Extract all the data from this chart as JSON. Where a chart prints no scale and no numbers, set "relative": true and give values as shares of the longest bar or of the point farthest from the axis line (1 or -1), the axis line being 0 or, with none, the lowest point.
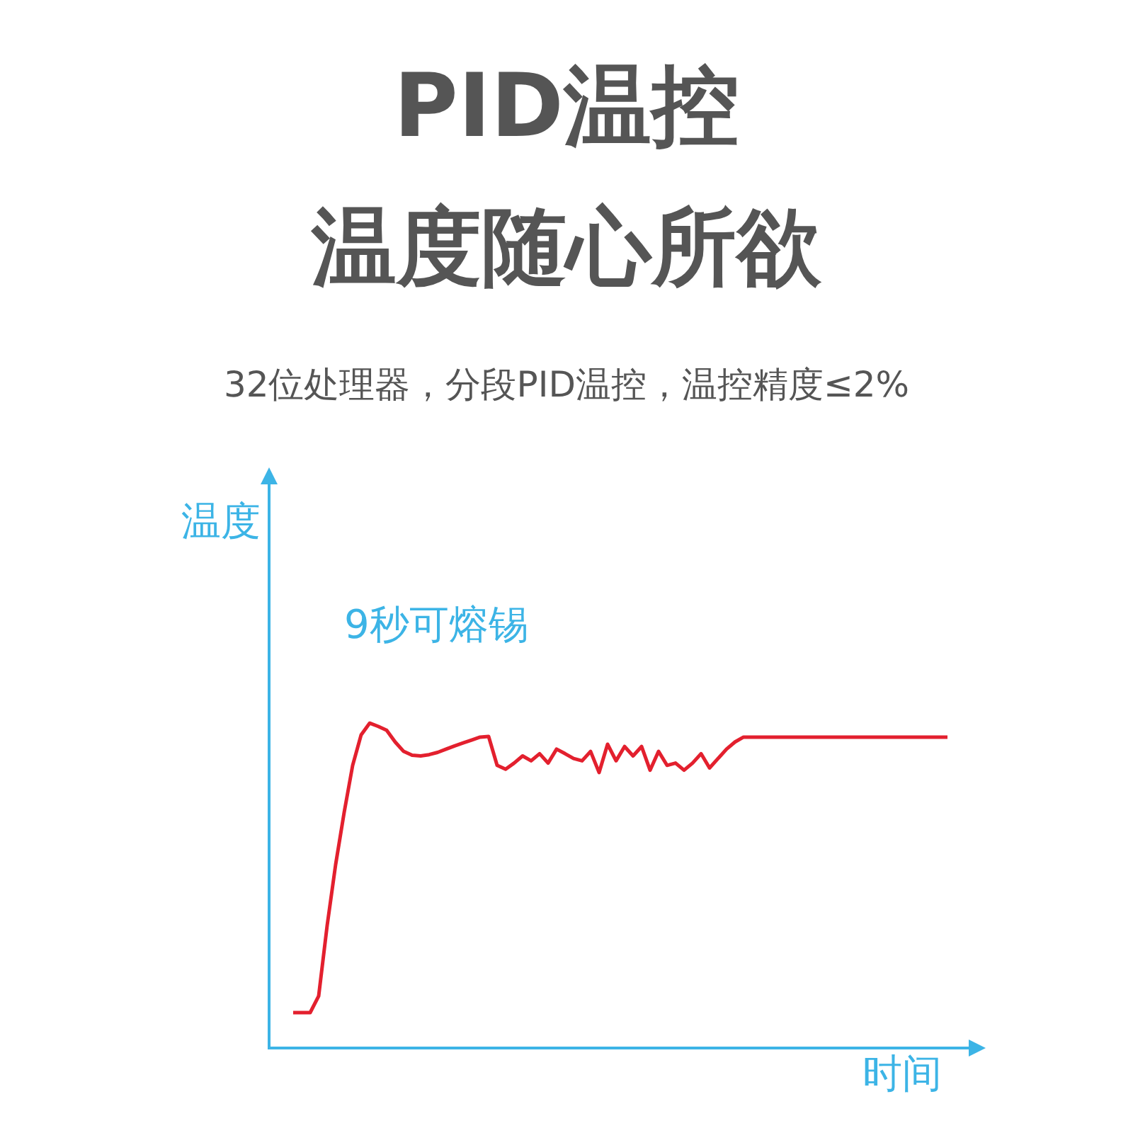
{
  "chart_data": {
    "type": "line",
    "title": "PID温控",
    "subtitle": "温度随心所欲",
    "xlabel": "时间",
    "ylabel": "温度",
    "relative": true,
    "annotations": [
      "32位处理器，分段PID温控，温控精度≤2%",
      "9秒可熔锡"
    ],
    "categories": [
      null,
      null,
      null,
      null,
      null,
      null,
      null,
      null,
      null,
      null,
      null,
      null,
      null,
      null,
      null,
      null,
      null,
      null,
      null,
      null,
      null,
      null,
      null,
      null,
      null,
      null,
      null,
      null,
      null,
      null,
      null,
      null,
      null,
      null,
      null,
      null,
      null,
      null,
      null,
      null,
      null,
      null,
      null,
      null,
      null,
      null,
      null,
      null,
      null,
      null,
      null,
      null,
      null,
      null,
      null,
      null,
      null,
      null,
      null,
      null,
      null,
      null,
      null,
      null,
      null,
      null,
      null,
      null,
      null,
      null,
      null,
      null,
      null,
      null,
      null,
      null,
      null,
      null
    ],
    "series": [
      {
        "color": "#e3202e",
        "values": [
          0.109,
          0.109,
          0.109,
          0.16,
          0.377,
          0.565,
          0.725,
          0.87,
          0.964,
          1,
          0.99,
          0.978,
          0.942,
          0.913,
          0.901,
          0.899,
          0.903,
          0.91,
          0.92,
          0.93,
          0.939,
          0.948,
          0.957,
          0.959,
          0.87,
          0.858,
          0.877,
          0.899,
          0.884,
          0.906,
          0.877,
          0.92,
          0.906,
          0.891,
          0.884,
          0.913,
          0.848,
          0.935,
          0.884,
          0.928,
          0.899,
          0.928,
          0.855,
          0.913,
          0.87,
          0.877,
          0.855,
          0.877,
          0.906,
          0.862,
          0.891,
          0.92,
          0.942,
          0.957,
          0.957,
          0.957,
          0.957,
          0.957,
          0.957,
          0.957,
          0.957,
          0.957,
          0.957,
          0.957,
          0.957,
          0.957,
          0.957,
          0.957,
          0.957,
          0.957,
          0.957,
          0.957,
          0.957,
          0.957,
          0.957,
          0.957,
          0.957,
          0.957
        ]
      }
    ]
  }
}
